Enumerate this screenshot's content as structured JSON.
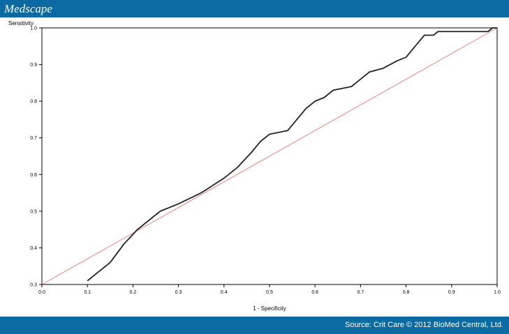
{
  "header": {
    "brand": "Medscape"
  },
  "footer": {
    "source": "Source: Crit Care © 2012 BioMed Central, Ltd."
  },
  "colors": {
    "bar": "#0a6aa1",
    "roc_curve": "#222222",
    "reference_line": "#f08080"
  },
  "chart_data": {
    "type": "line",
    "title": "",
    "xlabel": "1 - Specificity",
    "ylabel": "Sensitivity",
    "xlim": [
      0.0,
      1.0
    ],
    "ylim": [
      0.3,
      1.0
    ],
    "xticks": [
      "0.0",
      "0.1",
      "0.2",
      "0.3",
      "0.4",
      "0.5",
      "0.6",
      "0.7",
      "0.8",
      "0.9",
      "1.0"
    ],
    "yticks": [
      "0.3",
      "0.4",
      "0.5",
      "0.6",
      "0.7",
      "0.8",
      "0.9",
      "1.0"
    ],
    "grid": false,
    "series": [
      {
        "x": [
          0.1,
          0.12,
          0.15,
          0.18,
          0.21,
          0.24,
          0.26,
          0.3,
          0.35,
          0.4,
          0.43,
          0.46,
          0.48,
          0.5,
          0.54,
          0.56,
          0.58,
          0.6,
          0.62,
          0.64,
          0.68,
          0.7,
          0.72,
          0.75,
          0.78,
          0.8,
          0.82,
          0.84,
          0.86,
          0.87,
          0.9,
          0.93,
          0.96,
          0.98,
          0.99,
          1.0
        ],
        "y": [
          0.31,
          0.33,
          0.36,
          0.41,
          0.45,
          0.48,
          0.5,
          0.52,
          0.55,
          0.59,
          0.62,
          0.66,
          0.69,
          0.71,
          0.72,
          0.75,
          0.78,
          0.8,
          0.81,
          0.83,
          0.84,
          0.86,
          0.88,
          0.89,
          0.91,
          0.92,
          0.95,
          0.98,
          0.98,
          0.99,
          0.99,
          0.99,
          0.99,
          0.99,
          1.0,
          1.0
        ]
      },
      {
        "x": [
          0.0,
          1.0
        ],
        "y": [
          0.3,
          1.0
        ]
      }
    ]
  }
}
